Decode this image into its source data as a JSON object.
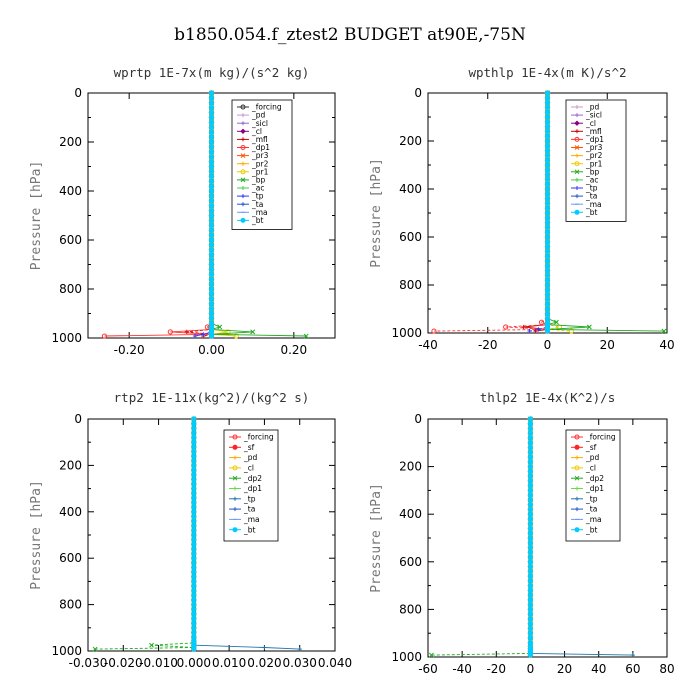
{
  "title": "b1850.054.f_ztest2  BUDGET at90E,-75N",
  "chart_data": [
    {
      "id": "wprtp",
      "type": "line",
      "title": "wprtp   1E-7x(m kg)/(s^2 kg)",
      "ylabel": "Pressure [hPa]",
      "ylim": [
        1000,
        0
      ],
      "xlim": [
        -0.3,
        0.3
      ],
      "x_ticks": [
        -0.2,
        0.0,
        0.2
      ],
      "x_tick_labels": [
        "-0.20",
        "0.00",
        "0.20"
      ],
      "y_ticks": [
        0,
        200,
        400,
        600,
        800,
        1000
      ],
      "legend_position": "top-right",
      "pressure_levels": [
        0,
        20,
        40,
        60,
        80,
        100,
        120,
        140,
        160,
        180,
        200,
        220,
        240,
        260,
        280,
        300,
        320,
        340,
        360,
        380,
        400,
        420,
        440,
        460,
        480,
        500,
        520,
        540,
        560,
        580,
        600,
        620,
        640,
        660,
        680,
        700,
        720,
        740,
        760,
        780,
        800,
        820,
        840,
        860,
        880,
        900,
        920,
        940,
        955,
        965,
        975,
        985,
        992
      ],
      "series": [
        {
          "name": "_forcing",
          "color": "#333333",
          "marker": "o",
          "x": "near_zero"
        },
        {
          "name": "_pd",
          "color": "#cc99cc",
          "marker": "+"
        },
        {
          "name": "_sicl",
          "color": "#9966cc",
          "marker": "+"
        },
        {
          "name": "_cl",
          "color": "#880088",
          "marker": "d"
        },
        {
          "name": "_mfl",
          "color": "#cc0000",
          "marker": "+",
          "surface": [
            {
              "p": 955,
              "x": 0.0
            },
            {
              "p": 975,
              "x": -0.06
            },
            {
              "p": 992,
              "x": -0.02
            }
          ]
        },
        {
          "name": "_dp1",
          "color": "#ff3333",
          "marker": "o",
          "surface": [
            {
              "p": 955,
              "x": -0.01
            },
            {
              "p": 975,
              "x": -0.1
            },
            {
              "p": 992,
              "x": -0.26
            }
          ]
        },
        {
          "name": "_pr3",
          "color": "#ff5500",
          "marker": "x"
        },
        {
          "name": "_pr2",
          "color": "#ffaa00",
          "marker": "+"
        },
        {
          "name": "_pr1",
          "color": "#eecc00",
          "marker": "o",
          "surface": [
            {
              "p": 975,
              "x": 0.04
            },
            {
              "p": 992,
              "x": 0.06
            }
          ]
        },
        {
          "name": "_bp",
          "color": "#22aa22",
          "marker": "x",
          "surface": [
            {
              "p": 955,
              "x": 0.02
            },
            {
              "p": 975,
              "x": 0.1
            },
            {
              "p": 992,
              "x": 0.23
            }
          ]
        },
        {
          "name": "_ac",
          "color": "#44cc44",
          "marker": "+"
        },
        {
          "name": "_tp",
          "color": "#3333ff",
          "marker": "+",
          "surface": [
            {
              "p": 985,
              "x": -0.02
            },
            {
              "p": 992,
              "x": -0.04
            }
          ]
        },
        {
          "name": "_ta",
          "color": "#2255cc",
          "marker": "+"
        },
        {
          "name": "_ma",
          "color": "#6699ff",
          "marker": "-"
        },
        {
          "name": "_bt",
          "color": "#00ccff",
          "marker": "*"
        }
      ]
    },
    {
      "id": "wpthlp",
      "type": "line",
      "title": "wpthlp   1E-4x(m K)/s^2",
      "ylabel": "Pressure [hPa]",
      "ylim": [
        1000,
        0
      ],
      "xlim": [
        -40,
        40
      ],
      "x_ticks": [
        -40,
        -20,
        0,
        20,
        40
      ],
      "x_tick_labels": [
        "-40",
        "-20",
        "0",
        "20",
        "40"
      ],
      "y_ticks": [
        0,
        200,
        400,
        600,
        800,
        1000
      ],
      "legend_position": "top-right",
      "series": [
        {
          "name": "_pd",
          "color": "#cc99cc",
          "marker": "+"
        },
        {
          "name": "_sicl",
          "color": "#9966cc",
          "marker": "+"
        },
        {
          "name": "_cl",
          "color": "#880088",
          "marker": "d"
        },
        {
          "name": "_mfl",
          "color": "#cc0000",
          "marker": "+",
          "surface": [
            {
              "p": 955,
              "x": 0
            },
            {
              "p": 975,
              "x": -8
            },
            {
              "p": 992,
              "x": -4
            }
          ]
        },
        {
          "name": "_dp1",
          "color": "#ff3333",
          "marker": "o",
          "surface": [
            {
              "p": 955,
              "x": -2
            },
            {
              "p": 975,
              "x": -14
            },
            {
              "p": 992,
              "x": -38
            }
          ]
        },
        {
          "name": "_pr3",
          "color": "#ff5500",
          "marker": "x"
        },
        {
          "name": "_pr2",
          "color": "#ffaa00",
          "marker": "+"
        },
        {
          "name": "_pr1",
          "color": "#eecc00",
          "marker": "o",
          "surface": [
            {
              "p": 975,
              "x": 4
            },
            {
              "p": 992,
              "x": 8
            }
          ]
        },
        {
          "name": "_bp",
          "color": "#22aa22",
          "marker": "x",
          "surface": [
            {
              "p": 955,
              "x": 3
            },
            {
              "p": 975,
              "x": 14
            },
            {
              "p": 992,
              "x": 39
            }
          ]
        },
        {
          "name": "_ac",
          "color": "#44cc44",
          "marker": "+"
        },
        {
          "name": "_tp",
          "color": "#3333ff",
          "marker": "+",
          "surface": [
            {
              "p": 985,
              "x": -3
            },
            {
              "p": 992,
              "x": -6
            }
          ]
        },
        {
          "name": "_ta",
          "color": "#2255cc",
          "marker": "+"
        },
        {
          "name": "_ma",
          "color": "#6699ff",
          "marker": "-"
        },
        {
          "name": "_bt",
          "color": "#00ccff",
          "marker": "*"
        }
      ]
    },
    {
      "id": "rtp2",
      "type": "line",
      "title": "rtp2   1E-11x(kg^2)/(kg^2 s)",
      "ylabel": "Pressure [hPa]",
      "ylim": [
        1000,
        0
      ],
      "xlim": [
        -0.03,
        0.04
      ],
      "x_ticks": [
        -0.03,
        -0.02,
        -0.01,
        0.0,
        0.01,
        0.02,
        0.03,
        0.04
      ],
      "x_tick_labels": [
        "-0.030",
        "-0.020",
        "-0.010",
        "0.000",
        "0.010",
        "0.020",
        "0.030",
        "0.040"
      ],
      "y_ticks": [
        0,
        200,
        400,
        600,
        800,
        1000
      ],
      "legend_position": "top-right",
      "series": [
        {
          "name": "_forcing",
          "color": "#ff3333",
          "marker": "o"
        },
        {
          "name": "_sf",
          "color": "#ff2222",
          "marker": "*"
        },
        {
          "name": "_pd",
          "color": "#ffaa00",
          "marker": "+"
        },
        {
          "name": "_cl",
          "color": "#eecc00",
          "marker": "o"
        },
        {
          "name": "_dp2",
          "color": "#22aa22",
          "marker": "x",
          "surface": [
            {
              "p": 955,
              "x": 0.0
            },
            {
              "p": 975,
              "x": -0.012
            },
            {
              "p": 992,
              "x": -0.028
            }
          ]
        },
        {
          "name": "_dp1",
          "color": "#66dd44",
          "marker": "+"
        },
        {
          "name": "_tp",
          "color": "#2277aa",
          "marker": "+",
          "surface": [
            {
              "p": 970,
              "x": 0.006
            },
            {
              "p": 985,
              "x": 0.02
            },
            {
              "p": 992,
              "x": 0.03
            }
          ]
        },
        {
          "name": "_ta",
          "color": "#2255cc",
          "marker": "+"
        },
        {
          "name": "_ma",
          "color": "#6699ff",
          "marker": "-"
        },
        {
          "name": "_bt",
          "color": "#00ccff",
          "marker": "*"
        }
      ]
    },
    {
      "id": "thlp2",
      "type": "line",
      "title": "thlp2   1E-4x(K^2)/s",
      "ylabel": "Pressure [hPa]",
      "ylim": [
        1000,
        0
      ],
      "xlim": [
        -60,
        80
      ],
      "x_ticks": [
        -60,
        -40,
        -20,
        0,
        20,
        40,
        60,
        80
      ],
      "x_tick_labels": [
        "-60",
        "-40",
        "-20",
        "0",
        "20",
        "40",
        "60",
        "80"
      ],
      "y_ticks": [
        0,
        200,
        400,
        600,
        800,
        1000
      ],
      "legend_position": "top-right",
      "series": [
        {
          "name": "_forcing",
          "color": "#ff3333",
          "marker": "o"
        },
        {
          "name": "_sf",
          "color": "#ff2222",
          "marker": "*"
        },
        {
          "name": "_pd",
          "color": "#ffaa00",
          "marker": "+"
        },
        {
          "name": "_cl",
          "color": "#eecc00",
          "marker": "o"
        },
        {
          "name": "_dp2",
          "color": "#22aa22",
          "marker": "x",
          "surface": [
            {
              "p": 960,
              "x": -4
            },
            {
              "p": 980,
              "x": -24
            },
            {
              "p": 992,
              "x": -58
            }
          ]
        },
        {
          "name": "_dp1",
          "color": "#66dd44",
          "marker": "+"
        },
        {
          "name": "_tp",
          "color": "#2277aa",
          "marker": "+",
          "surface": [
            {
              "p": 960,
              "x": 6
            },
            {
              "p": 978,
              "x": 24
            },
            {
              "p": 992,
              "x": 60
            }
          ]
        },
        {
          "name": "_ta",
          "color": "#2255cc",
          "marker": "+"
        },
        {
          "name": "_ma",
          "color": "#6699ff",
          "marker": "-"
        },
        {
          "name": "_bt",
          "color": "#00ccff",
          "marker": "*"
        }
      ]
    }
  ]
}
